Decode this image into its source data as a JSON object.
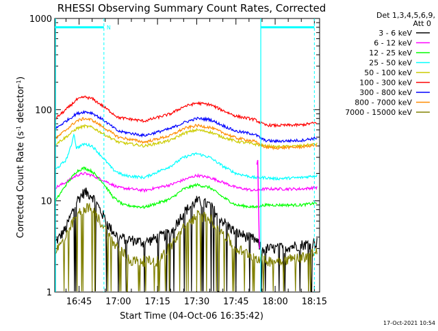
{
  "chart_data": {
    "type": "line",
    "title": "RHESSI Observing Summary Count Rates, Corrected",
    "xlabel": "Start Time (04-Oct-06 16:35:42)",
    "ylabel": "Corrected Count Rate (s⁻¹ detector⁻¹)",
    "ylabel_parts": {
      "main": "Corrected Count Rate (s",
      "sup1": "-1",
      "mid": " detector",
      "sup2": "-1",
      "end": ")"
    },
    "x_ticks": [
      "16:45",
      "17:00",
      "17:15",
      "17:30",
      "17:45",
      "18:00",
      "18:15"
    ],
    "y_ticks": [
      "1",
      "10",
      "100",
      "1000"
    ],
    "y_scale": "log",
    "ylim": [
      1,
      1000
    ],
    "xlim": [
      "16:35:42",
      "18:17:00"
    ],
    "legend_header": [
      "Det 1,3,4,5,6,9,",
      "Att 0"
    ],
    "legend_position": "right",
    "series": [
      {
        "name": "3 - 6 keV",
        "color": "#000000",
        "values": [
          [
            "16:36",
            3.5
          ],
          [
            "16:40",
            5.0
          ],
          [
            "16:44",
            10.0
          ],
          [
            "16:47",
            12.5
          ],
          [
            "16:50",
            11.5
          ],
          [
            "16:53",
            8.0
          ],
          [
            "16:57",
            5.0
          ],
          [
            "17:00",
            4.0
          ],
          [
            "17:10",
            3.5
          ],
          [
            "17:20",
            4.5
          ],
          [
            "17:25",
            7.5
          ],
          [
            "17:30",
            10.0
          ],
          [
            "17:35",
            9.0
          ],
          [
            "17:40",
            6.0
          ],
          [
            "17:45",
            4.5
          ],
          [
            "17:52",
            3.8
          ],
          [
            "17:55",
            3.0
          ],
          [
            "18:00",
            3.0
          ],
          [
            "18:10",
            3.3
          ],
          [
            "18:16",
            3.5
          ]
        ]
      },
      {
        "name": "6 - 12 keV",
        "color": "#ff00ff",
        "values": [
          [
            "16:36",
            14
          ],
          [
            "16:40",
            16
          ],
          [
            "16:44",
            19
          ],
          [
            "16:47",
            20
          ],
          [
            "16:50",
            19
          ],
          [
            "16:54",
            17
          ],
          [
            "17:00",
            14
          ],
          [
            "17:10",
            13
          ],
          [
            "17:20",
            15
          ],
          [
            "17:25",
            17
          ],
          [
            "17:30",
            19
          ],
          [
            "17:35",
            18
          ],
          [
            "17:40",
            16
          ],
          [
            "17:45",
            14
          ],
          [
            "17:52",
            13
          ],
          [
            "17:56",
            13.5
          ],
          [
            "18:00",
            13.5
          ],
          [
            "18:10",
            13.5
          ],
          [
            "18:16",
            14
          ]
        ]
      },
      {
        "name": "12 - 25 keV",
        "color": "#00ff00",
        "values": [
          [
            "16:36",
            10
          ],
          [
            "16:40",
            15
          ],
          [
            "16:44",
            21
          ],
          [
            "16:47",
            23
          ],
          [
            "16:50",
            21
          ],
          [
            "16:54",
            16
          ],
          [
            "16:58",
            11
          ],
          [
            "17:02",
            9
          ],
          [
            "17:10",
            8.5
          ],
          [
            "17:20",
            10.5
          ],
          [
            "17:25",
            13.5
          ],
          [
            "17:30",
            15
          ],
          [
            "17:35",
            14
          ],
          [
            "17:40",
            11
          ],
          [
            "17:45",
            9
          ],
          [
            "17:52",
            8.5
          ],
          [
            "17:56",
            9
          ],
          [
            "18:00",
            9
          ],
          [
            "18:10",
            9
          ],
          [
            "18:16",
            9.5
          ]
        ]
      },
      {
        "name": "25 - 50 keV",
        "color": "#00ffff",
        "values": [
          [
            "16:36",
            22
          ],
          [
            "16:40",
            28
          ],
          [
            "16:42",
            40
          ],
          [
            "16:43",
            55
          ],
          [
            "16:44",
            38
          ],
          [
            "16:47",
            42
          ],
          [
            "16:50",
            40
          ],
          [
            "16:54",
            30
          ],
          [
            "16:58",
            22
          ],
          [
            "17:02",
            19
          ],
          [
            "17:10",
            18
          ],
          [
            "17:20",
            24
          ],
          [
            "17:25",
            30
          ],
          [
            "17:30",
            33
          ],
          [
            "17:35",
            30
          ],
          [
            "17:40",
            24
          ],
          [
            "17:45",
            20
          ],
          [
            "17:52",
            18
          ],
          [
            "17:56",
            18
          ],
          [
            "18:00",
            17.5
          ],
          [
            "18:10",
            18
          ],
          [
            "18:16",
            19
          ]
        ]
      },
      {
        "name": "50 - 100 keV",
        "color": "#cccc00",
        "values": [
          [
            "16:36",
            42
          ],
          [
            "16:40",
            50
          ],
          [
            "16:44",
            62
          ],
          [
            "16:47",
            66
          ],
          [
            "16:50",
            64
          ],
          [
            "16:54",
            55
          ],
          [
            "17:00",
            44
          ],
          [
            "17:10",
            40
          ],
          [
            "17:20",
            46
          ],
          [
            "17:25",
            55
          ],
          [
            "17:30",
            60
          ],
          [
            "17:35",
            57
          ],
          [
            "17:40",
            50
          ],
          [
            "17:45",
            45
          ],
          [
            "17:52",
            42
          ],
          [
            "17:56",
            40
          ],
          [
            "18:00",
            39
          ],
          [
            "18:10",
            40
          ],
          [
            "18:16",
            42
          ]
        ]
      },
      {
        "name": "100 - 300 keV",
        "color": "#ff0000",
        "values": [
          [
            "16:36",
            80
          ],
          [
            "16:40",
            100
          ],
          [
            "16:44",
            128
          ],
          [
            "16:47",
            138
          ],
          [
            "16:50",
            132
          ],
          [
            "16:54",
            110
          ],
          [
            "17:00",
            82
          ],
          [
            "17:10",
            75
          ],
          [
            "17:20",
            90
          ],
          [
            "17:25",
            108
          ],
          [
            "17:30",
            118
          ],
          [
            "17:35",
            114
          ],
          [
            "17:40",
            98
          ],
          [
            "17:45",
            85
          ],
          [
            "17:52",
            78
          ],
          [
            "17:56",
            68
          ],
          [
            "18:00",
            67
          ],
          [
            "18:10",
            68
          ],
          [
            "18:16",
            72
          ]
        ]
      },
      {
        "name": "300 - 800 keV",
        "color": "#0000ff",
        "values": [
          [
            "16:36",
            62
          ],
          [
            "16:40",
            75
          ],
          [
            "16:44",
            90
          ],
          [
            "16:47",
            95
          ],
          [
            "16:50",
            92
          ],
          [
            "16:54",
            78
          ],
          [
            "17:00",
            58
          ],
          [
            "17:10",
            52
          ],
          [
            "17:20",
            62
          ],
          [
            "17:25",
            72
          ],
          [
            "17:30",
            80
          ],
          [
            "17:35",
            78
          ],
          [
            "17:40",
            67
          ],
          [
            "17:45",
            58
          ],
          [
            "17:52",
            54
          ],
          [
            "17:56",
            46
          ],
          [
            "18:00",
            45
          ],
          [
            "18:10",
            46
          ],
          [
            "18:16",
            49
          ]
        ]
      },
      {
        "name": "800 - 7000 keV",
        "color": "#ff8c00",
        "values": [
          [
            "16:36",
            48
          ],
          [
            "16:40",
            60
          ],
          [
            "16:44",
            75
          ],
          [
            "16:47",
            80
          ],
          [
            "16:50",
            77
          ],
          [
            "16:54",
            65
          ],
          [
            "17:00",
            50
          ],
          [
            "17:10",
            44
          ],
          [
            "17:20",
            52
          ],
          [
            "17:25",
            62
          ],
          [
            "17:30",
            67
          ],
          [
            "17:35",
            64
          ],
          [
            "17:40",
            56
          ],
          [
            "17:45",
            49
          ],
          [
            "17:52",
            45
          ],
          [
            "17:56",
            39
          ],
          [
            "18:00",
            38
          ],
          [
            "18:10",
            39
          ],
          [
            "18:16",
            41
          ]
        ]
      },
      {
        "name": "7000 - 15000 keV",
        "color": "#808000",
        "values": [
          [
            "16:36",
            2.8
          ],
          [
            "16:40",
            4.0
          ],
          [
            "16:44",
            7.0
          ],
          [
            "16:47",
            8.5
          ],
          [
            "16:50",
            8.0
          ],
          [
            "16:54",
            5.5
          ],
          [
            "16:58",
            3.5
          ],
          [
            "17:05",
            2.2
          ],
          [
            "17:15",
            2.2
          ],
          [
            "17:20",
            3.2
          ],
          [
            "17:25",
            5.0
          ],
          [
            "17:30",
            7.0
          ],
          [
            "17:35",
            6.5
          ],
          [
            "17:40",
            4.5
          ],
          [
            "17:45",
            3.0
          ],
          [
            "17:52",
            2.5
          ],
          [
            "17:56",
            2.2
          ],
          [
            "18:00",
            2.2
          ],
          [
            "18:10",
            2.4
          ],
          [
            "18:16",
            2.8
          ]
        ]
      }
    ],
    "annotations": {
      "marker_letter": "N",
      "cyan_bar_level": 800,
      "bar_segments": [
        [
          "16:35:42",
          "16:54:30"
        ],
        [
          "17:54:30",
          "18:15:00"
        ]
      ],
      "dashed_lines": [
        "16:54:30",
        "18:15:00"
      ],
      "solid_lines": [
        "16:36:00",
        "17:54:30"
      ],
      "spike": {
        "time": "17:53:30",
        "values": [
          [
            "17:53:00",
            25
          ],
          [
            "17:53:20",
            28
          ],
          [
            "17:53:40",
            8
          ],
          [
            "17:54:00",
            3
          ]
        ]
      }
    },
    "grid": false
  },
  "footer": {
    "timestamp": "17-Oct-2021 10:54"
  }
}
